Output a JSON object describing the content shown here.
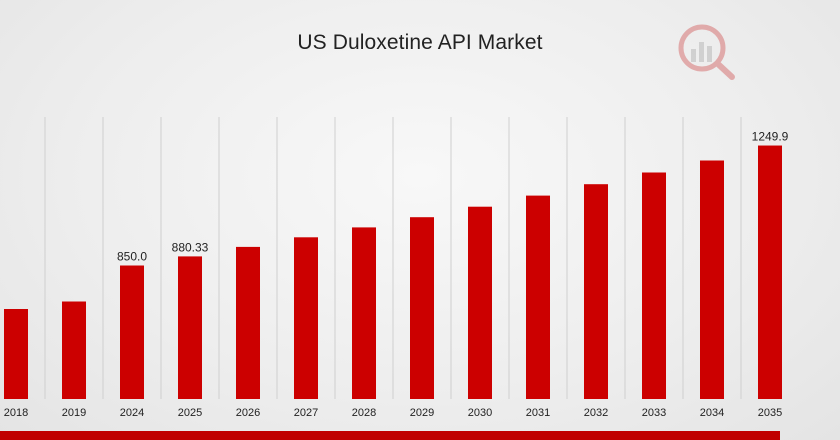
{
  "chart_data": {
    "type": "bar",
    "title": "US Duloxetine API Market",
    "categories": [
      "2018",
      "2019",
      "2024",
      "2025",
      "2026",
      "2027",
      "2028",
      "2029",
      "2030",
      "2031",
      "2032",
      "2033",
      "2034",
      "2035"
    ],
    "values": [
      705,
      730,
      850.0,
      880.33,
      912,
      944,
      977,
      1011,
      1046,
      1083,
      1121,
      1160,
      1200,
      1249.9
    ],
    "data_labels": [
      "",
      "",
      "850.0",
      "880.33",
      "",
      "",
      "",
      "",
      "",
      "",
      "",
      "",
      "",
      "1249.9"
    ],
    "ylim": [
      405,
      1345
    ],
    "grid": "vertical",
    "legend": "none",
    "colors": {
      "bar": "#cc0000",
      "grid": "#cfcfcf",
      "band": "#c00000"
    }
  }
}
